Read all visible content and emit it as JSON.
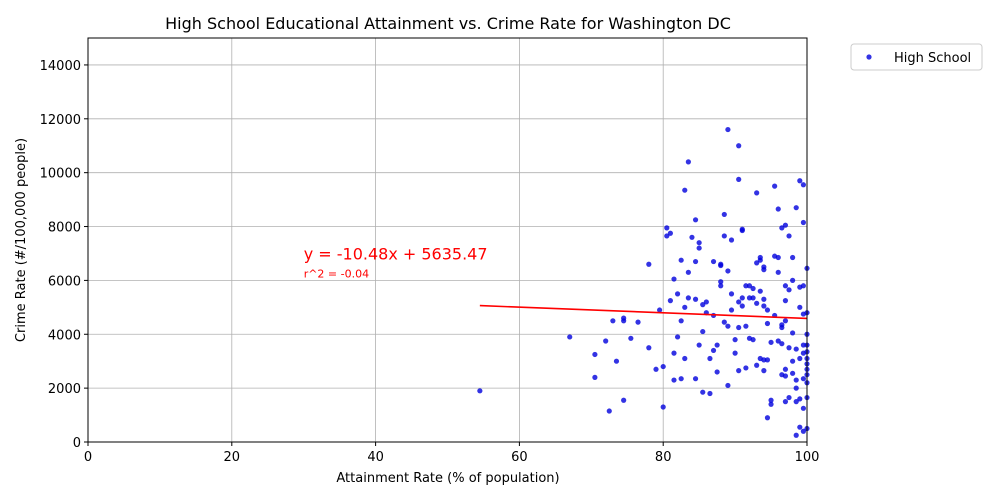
{
  "chart_data": {
    "type": "scatter",
    "title": "High School Educational Attainment vs. Crime Rate for Washington DC",
    "xlabel": "Attainment Rate (% of population)",
    "ylabel": "Crime Rate (#/100,000 people)",
    "xlim": [
      0,
      100
    ],
    "ylim": [
      0,
      15000
    ],
    "x_ticks": [
      0,
      20,
      40,
      60,
      80,
      100
    ],
    "y_ticks": [
      0,
      2000,
      4000,
      6000,
      8000,
      10000,
      12000,
      14000
    ],
    "grid": true,
    "legend_placement": "outside-top-right",
    "series": [
      {
        "name": "High School",
        "color": "#0000dd",
        "points": [
          [
            54.5,
            1900
          ],
          [
            67,
            3900
          ],
          [
            70.5,
            3250
          ],
          [
            70.5,
            2400
          ],
          [
            72,
            3750
          ],
          [
            72.5,
            1150
          ],
          [
            73,
            4500
          ],
          [
            73.5,
            3000
          ],
          [
            74.5,
            4500
          ],
          [
            74.5,
            4600
          ],
          [
            74.5,
            1550
          ],
          [
            75.5,
            3850
          ],
          [
            76.5,
            4450
          ],
          [
            78,
            6600
          ],
          [
            78,
            3500
          ],
          [
            79,
            2700
          ],
          [
            79.5,
            4900
          ],
          [
            80,
            2800
          ],
          [
            80,
            1300
          ],
          [
            80.5,
            7950
          ],
          [
            80.5,
            7650
          ],
          [
            81,
            7750
          ],
          [
            81,
            5250
          ],
          [
            81.5,
            6050
          ],
          [
            81.5,
            3300
          ],
          [
            81.5,
            2300
          ],
          [
            82,
            5500
          ],
          [
            82,
            3900
          ],
          [
            82.5,
            6750
          ],
          [
            82.5,
            4500
          ],
          [
            82.5,
            2350
          ],
          [
            83,
            9350
          ],
          [
            83,
            5000
          ],
          [
            83,
            3100
          ],
          [
            83.5,
            10400
          ],
          [
            83.5,
            6300
          ],
          [
            83.5,
            5350
          ],
          [
            84,
            7600
          ],
          [
            84.5,
            8250
          ],
          [
            84.5,
            6700
          ],
          [
            84.5,
            5300
          ],
          [
            84.5,
            2350
          ],
          [
            85,
            7200
          ],
          [
            85,
            7400
          ],
          [
            85,
            3600
          ],
          [
            85.5,
            5100
          ],
          [
            85.5,
            4100
          ],
          [
            85.5,
            1850
          ],
          [
            86,
            5200
          ],
          [
            86,
            4800
          ],
          [
            86.5,
            1800
          ],
          [
            86.5,
            3100
          ],
          [
            87,
            6700
          ],
          [
            87,
            4700
          ],
          [
            87,
            3400
          ],
          [
            87.5,
            3600
          ],
          [
            87.5,
            2600
          ],
          [
            88,
            6600
          ],
          [
            88,
            6550
          ],
          [
            88,
            5800
          ],
          [
            88,
            5950
          ],
          [
            88.5,
            8450
          ],
          [
            88.5,
            7650
          ],
          [
            88.5,
            4450
          ],
          [
            89,
            11600
          ],
          [
            89,
            6350
          ],
          [
            89,
            4300
          ],
          [
            89,
            2100
          ],
          [
            89.5,
            7500
          ],
          [
            89.5,
            5500
          ],
          [
            89.5,
            4900
          ],
          [
            90,
            3800
          ],
          [
            90,
            3300
          ],
          [
            90.5,
            11000
          ],
          [
            90.5,
            9750
          ],
          [
            90.5,
            5200
          ],
          [
            90.5,
            4250
          ],
          [
            90.5,
            2650
          ],
          [
            91,
            7900
          ],
          [
            91,
            7850
          ],
          [
            91,
            5350
          ],
          [
            91,
            5050
          ],
          [
            91.5,
            5800
          ],
          [
            91.5,
            4300
          ],
          [
            91.5,
            2750
          ],
          [
            92,
            5800
          ],
          [
            92,
            5350
          ],
          [
            92,
            3850
          ],
          [
            92.5,
            5700
          ],
          [
            92.5,
            5350
          ],
          [
            92.5,
            3800
          ],
          [
            93,
            9250
          ],
          [
            93,
            6650
          ],
          [
            93,
            5150
          ],
          [
            93,
            2850
          ],
          [
            93.5,
            6850
          ],
          [
            93.5,
            6750
          ],
          [
            93.5,
            5600
          ],
          [
            93.5,
            3100
          ],
          [
            94,
            6500
          ],
          [
            94,
            6400
          ],
          [
            94,
            5300
          ],
          [
            94,
            5050
          ],
          [
            94,
            3050
          ],
          [
            94,
            2650
          ],
          [
            94.5,
            4900
          ],
          [
            94.5,
            4400
          ],
          [
            94.5,
            3050
          ],
          [
            94.5,
            900
          ],
          [
            95,
            3700
          ],
          [
            95,
            1400
          ],
          [
            95,
            1550
          ],
          [
            95.5,
            9500
          ],
          [
            95.5,
            6900
          ],
          [
            95.5,
            4700
          ],
          [
            96,
            8650
          ],
          [
            96,
            6850
          ],
          [
            96,
            6300
          ],
          [
            96,
            3750
          ],
          [
            96.5,
            7950
          ],
          [
            96.5,
            4350
          ],
          [
            96.5,
            4250
          ],
          [
            96.5,
            3650
          ],
          [
            96.5,
            2500
          ],
          [
            97,
            8050
          ],
          [
            97,
            5800
          ],
          [
            97,
            5250
          ],
          [
            97,
            4500
          ],
          [
            97,
            2450
          ],
          [
            97,
            2700
          ],
          [
            97,
            1500
          ],
          [
            97.5,
            7650
          ],
          [
            97.5,
            5650
          ],
          [
            97.5,
            3500
          ],
          [
            97.5,
            1650
          ],
          [
            98,
            6850
          ],
          [
            98,
            6000
          ],
          [
            98,
            4050
          ],
          [
            98,
            3000
          ],
          [
            98,
            2550
          ],
          [
            98.5,
            8700
          ],
          [
            98.5,
            3450
          ],
          [
            98.5,
            2300
          ],
          [
            98.5,
            2000
          ],
          [
            98.5,
            1500
          ],
          [
            98.5,
            250
          ],
          [
            99,
            9700
          ],
          [
            99,
            5750
          ],
          [
            99,
            5000
          ],
          [
            99,
            3100
          ],
          [
            99,
            1600
          ],
          [
            99,
            550
          ],
          [
            99.5,
            9550
          ],
          [
            99.5,
            8150
          ],
          [
            99.5,
            5800
          ],
          [
            99.5,
            4750
          ],
          [
            99.5,
            3600
          ],
          [
            99.5,
            3300
          ],
          [
            99.5,
            2350
          ],
          [
            99.5,
            1250
          ],
          [
            99.5,
            400
          ],
          [
            100,
            6450
          ],
          [
            100,
            4800
          ],
          [
            100,
            4000
          ],
          [
            100,
            3600
          ],
          [
            100,
            3350
          ],
          [
            100,
            3100
          ],
          [
            100,
            2900
          ],
          [
            100,
            2700
          ],
          [
            100,
            2500
          ],
          [
            100,
            2200
          ],
          [
            100,
            1650
          ],
          [
            100,
            500
          ]
        ]
      }
    ],
    "regression": {
      "slope": -10.48,
      "intercept": 5635.47,
      "x_range": [
        54.5,
        100
      ],
      "color": "#ff0000",
      "equation_label": "y = -10.48x + 5635.47",
      "r2_label": "r^2 = -0.04",
      "label_position": [
        30,
        7000
      ],
      "r2_position": [
        30,
        6250
      ]
    }
  }
}
